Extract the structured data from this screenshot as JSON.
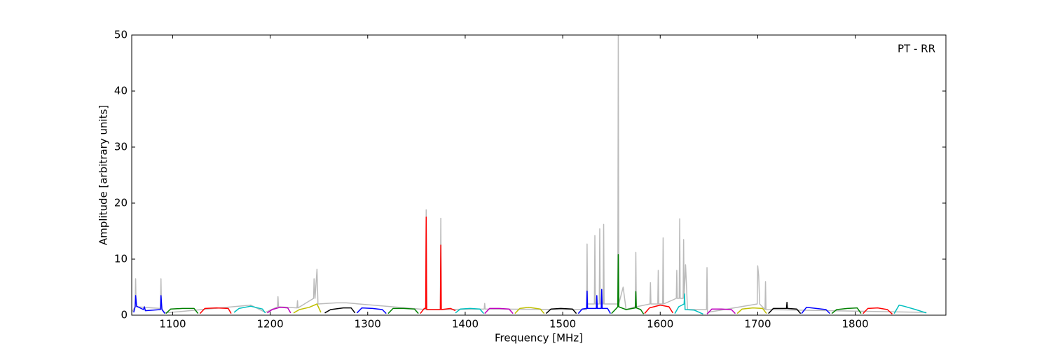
{
  "chart_data": {
    "type": "line",
    "x_label": "Frequency [MHz]",
    "y_label": "Amplitude [arbitrary units]",
    "annotation": "PT - RR",
    "xlim": [
      1058,
      1893
    ],
    "ylim": [
      0,
      50
    ],
    "xticks": [
      1100,
      1200,
      1300,
      1400,
      1500,
      1600,
      1700,
      1800
    ],
    "yticks": [
      0,
      10,
      20,
      30,
      40,
      50
    ],
    "grid": false,
    "series": [
      {
        "color": "#bbbbbb",
        "x": [
          1058,
          1061.5,
          1062,
          1062.5,
          1087.5,
          1088,
          1088.5,
          1092,
          1180,
          1195,
          1207.5,
          1208,
          1208.5,
          1227.5,
          1228,
          1228.5,
          1244.5,
          1245,
          1246,
          1248,
          1249,
          1268,
          1278,
          1359.5,
          1360,
          1360.5,
          1374.5,
          1375,
          1375.5,
          1419.5,
          1420,
          1420.5,
          1524.5,
          1525,
          1525.5,
          1532.5,
          1533,
          1533.5,
          1537.5,
          1538,
          1538.5,
          1541.5,
          1542,
          1542.5,
          1552,
          1556.5,
          1557,
          1557.5,
          1562,
          1565,
          1574.5,
          1575,
          1575.5,
          1589.5,
          1590,
          1590.5,
          1597.5,
          1598,
          1598.5,
          1602.5,
          1603,
          1603.5,
          1616.5,
          1617,
          1617.5,
          1619.5,
          1620,
          1620.5,
          1623.5,
          1624,
          1624.5,
          1626,
          1628,
          1647.5,
          1648,
          1648.5,
          1699.5,
          1700,
          1701,
          1702,
          1707.5,
          1708,
          1708.5,
          1873
        ],
        "values": [
          0.5,
          1.5,
          6.5,
          1.5,
          1.2,
          6.5,
          1.2,
          0.4,
          1.8,
          0.5,
          1.5,
          3.3,
          1.5,
          1.3,
          2.6,
          1.3,
          3,
          6.5,
          3,
          8.2,
          2,
          2.2,
          2.2,
          1,
          18.8,
          1,
          1,
          17.3,
          1,
          1.1,
          2.1,
          1.1,
          1,
          12.7,
          2,
          2,
          14.2,
          2,
          2,
          15.4,
          2,
          2,
          16.2,
          2,
          2,
          2,
          50,
          2,
          5,
          1,
          1.5,
          11.2,
          1.5,
          2,
          5.8,
          2,
          2,
          8,
          2,
          2,
          13.8,
          2,
          3,
          8,
          3,
          3,
          17.2,
          3,
          3,
          13.5,
          3,
          9,
          1,
          1,
          8.5,
          0.5,
          2,
          8.8,
          7,
          2,
          1,
          6,
          1,
          0.5
        ]
      },
      {
        "color": "#0000ff",
        "x": [
          1060,
          1061.5,
          1062,
          1063,
          1070,
          1071,
          1072,
          1087.5,
          1088,
          1089,
          1092
        ],
        "values": [
          0.5,
          1.5,
          3.5,
          1.6,
          1.0,
          1.5,
          0.8,
          1.0,
          3.5,
          1.0,
          0.3
        ]
      },
      {
        "color": "#008000",
        "x": [
          1093,
          1098,
          1110,
          1122,
          1126
        ],
        "values": [
          0.3,
          1.1,
          1.2,
          1.2,
          0.3
        ]
      },
      {
        "color": "#ff0000",
        "x": [
          1128,
          1133,
          1145,
          1157,
          1160
        ],
        "values": [
          0.3,
          1.2,
          1.3,
          1.2,
          0.3
        ]
      },
      {
        "color": "#00bfbf",
        "x": [
          1163,
          1168,
          1180,
          1192,
          1195
        ],
        "values": [
          0.5,
          1.2,
          1.6,
          1.1,
          0.4
        ]
      },
      {
        "color": "#bf00bf",
        "x": [
          1197,
          1202,
          1210,
          1218,
          1221
        ],
        "values": [
          0.4,
          1.0,
          1.4,
          1.3,
          0.4
        ]
      },
      {
        "color": "#bfbf00",
        "x": [
          1224,
          1230,
          1240,
          1248,
          1252
        ],
        "values": [
          0.4,
          1.0,
          1.4,
          2.0,
          0.5
        ]
      },
      {
        "color": "#000000",
        "x": [
          1256,
          1262,
          1275,
          1283,
          1287
        ],
        "values": [
          0.4,
          1.0,
          1.3,
          1.3,
          0.4
        ]
      },
      {
        "color": "#0000ff",
        "x": [
          1289,
          1294,
          1305,
          1315,
          1319
        ],
        "values": [
          0.4,
          1.3,
          1.2,
          1.0,
          0.3
        ]
      },
      {
        "color": "#008000",
        "x": [
          1321,
          1326,
          1337,
          1348,
          1352
        ],
        "values": [
          0.3,
          1.2,
          1.2,
          1.1,
          0.3
        ]
      },
      {
        "color": "#ff0000",
        "x": [
          1354,
          1358,
          1359.5,
          1360,
          1360.5,
          1374.5,
          1375,
          1375.5,
          1385,
          1390
        ],
        "values": [
          0.3,
          1.2,
          1.2,
          17.5,
          1.0,
          1.0,
          12.5,
          1.0,
          1.2,
          0.8
        ]
      },
      {
        "color": "#00bfbf",
        "x": [
          1390,
          1395,
          1405,
          1415,
          1419
        ],
        "values": [
          0.4,
          1.1,
          1.2,
          1.1,
          0.3
        ]
      },
      {
        "color": "#bf00bf",
        "x": [
          1420,
          1425,
          1435,
          1445,
          1449
        ],
        "values": [
          0.3,
          1.2,
          1.2,
          1.1,
          0.3
        ]
      },
      {
        "color": "#bfbf00",
        "x": [
          1451,
          1456,
          1465,
          1477,
          1481
        ],
        "values": [
          0.3,
          1.2,
          1.4,
          1.1,
          0.3
        ]
      },
      {
        "color": "#000000",
        "x": [
          1483,
          1488,
          1498,
          1510,
          1514
        ],
        "values": [
          0.3,
          1.1,
          1.2,
          1.1,
          0.3
        ]
      },
      {
        "color": "#0000ff",
        "x": [
          1516,
          1520,
          1524.5,
          1525,
          1525.5,
          1534.5,
          1535,
          1535.5,
          1539.5,
          1540,
          1540.5,
          1546,
          1549
        ],
        "values": [
          0.3,
          1.1,
          1.2,
          4.3,
          1.2,
          1.2,
          3.5,
          1.2,
          1.2,
          4.6,
          1.2,
          1.2,
          0.3
        ]
      },
      {
        "color": "#008000",
        "x": [
          1550,
          1555,
          1556.5,
          1557,
          1557.5,
          1565,
          1574.5,
          1575,
          1575.5,
          1580,
          1583
        ],
        "values": [
          0.3,
          1.2,
          1.5,
          10.8,
          1.5,
          1.0,
          1.3,
          4.2,
          1.3,
          1.0,
          0.2
        ]
      },
      {
        "color": "#ff0000",
        "x": [
          1584,
          1589,
          1600,
          1609,
          1613
        ],
        "values": [
          0.3,
          1.3,
          1.8,
          1.5,
          0.4
        ]
      },
      {
        "color": "#00bfbf",
        "x": [
          1615,
          1619,
          1624.5,
          1625,
          1625.5,
          1635,
          1644
        ],
        "values": [
          0.3,
          1.5,
          2.0,
          3.8,
          1.0,
          0.9,
          0.2
        ]
      },
      {
        "color": "#bf00bf",
        "x": [
          1648,
          1653,
          1663,
          1673,
          1677
        ],
        "values": [
          0.2,
          1.1,
          1.1,
          1.0,
          0.3
        ]
      },
      {
        "color": "#bfbf00",
        "x": [
          1679,
          1684,
          1695,
          1705,
          1709
        ],
        "values": [
          0.3,
          1.1,
          1.3,
          1.2,
          0.3
        ]
      },
      {
        "color": "#000000",
        "x": [
          1711,
          1716,
          1729.5,
          1730,
          1730.5,
          1740,
          1744
        ],
        "values": [
          0.3,
          1.2,
          1.2,
          2.3,
          1.2,
          1.1,
          0.3
        ]
      },
      {
        "color": "#0000ff",
        "x": [
          1745,
          1750,
          1760,
          1770,
          1774
        ],
        "values": [
          0.3,
          1.4,
          1.2,
          1.0,
          0.3
        ]
      },
      {
        "color": "#008000",
        "x": [
          1776,
          1781,
          1792,
          1802,
          1806
        ],
        "values": [
          0.3,
          1.0,
          1.2,
          1.3,
          0.3
        ]
      },
      {
        "color": "#ff0000",
        "x": [
          1808,
          1813,
          1823,
          1833,
          1838
        ],
        "values": [
          0.3,
          1.2,
          1.3,
          1.0,
          0.2
        ]
      },
      {
        "color": "#00bfbf",
        "x": [
          1840,
          1845,
          1850,
          1862,
          1873
        ],
        "values": [
          0.3,
          1.8,
          1.6,
          1.0,
          0.4
        ]
      }
    ]
  }
}
